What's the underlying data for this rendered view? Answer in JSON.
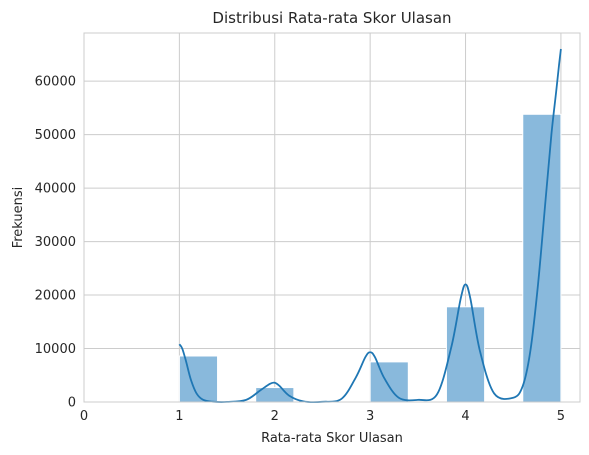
{
  "chart_data": {
    "type": "bar",
    "title": "Distribusi Rata-rata Skor Ulasan",
    "xlabel": "Rata-rata Skor Ulasan",
    "ylabel": "Frekuensi",
    "xlim": [
      0,
      5.2
    ],
    "ylim": [
      0,
      69000
    ],
    "xticks": [
      "0",
      "1",
      "2",
      "3",
      "4",
      "5"
    ],
    "yticks": [
      "0",
      "10000",
      "20000",
      "30000",
      "40000",
      "50000",
      "60000"
    ],
    "grid": true,
    "bars": [
      {
        "x0": 1.0,
        "x1": 1.4,
        "value": 8600
      },
      {
        "x0": 1.8,
        "x1": 2.2,
        "value": 2700
      },
      {
        "x0": 3.0,
        "x1": 3.4,
        "value": 7500
      },
      {
        "x0": 3.8,
        "x1": 4.2,
        "value": 17800
      },
      {
        "x0": 4.6,
        "x1": 5.0,
        "value": 53800
      }
    ],
    "kde": {
      "x": [
        1.0,
        1.03,
        1.07,
        1.12,
        1.18,
        1.25,
        1.35,
        1.5,
        1.7,
        1.85,
        1.95,
        2.0,
        2.05,
        2.15,
        2.3,
        2.5,
        2.7,
        2.85,
        2.95,
        3.0,
        3.05,
        3.15,
        3.3,
        3.5,
        3.7,
        3.85,
        3.95,
        4.0,
        4.05,
        4.15,
        4.3,
        4.5,
        4.6,
        4.68,
        4.76,
        4.84,
        4.9,
        4.95,
        4.98,
        5.0
      ],
      "y": [
        10800,
        10000,
        7600,
        4200,
        1600,
        400,
        60,
        20,
        400,
        2200,
        3400,
        3600,
        3000,
        1200,
        120,
        40,
        600,
        4600,
        8400,
        9300,
        8400,
        4400,
        800,
        400,
        1400,
        10200,
        19400,
        22000,
        19400,
        9600,
        1600,
        800,
        3000,
        9600,
        22000,
        38000,
        50000,
        58000,
        63000,
        66000
      ]
    },
    "colors": {
      "bar": "#89b9dc",
      "bar_edge": "#ffffff",
      "line": "#1f77b4",
      "grid": "#cccccc",
      "frame": "#cccccc",
      "bg": "#ffffff"
    }
  }
}
